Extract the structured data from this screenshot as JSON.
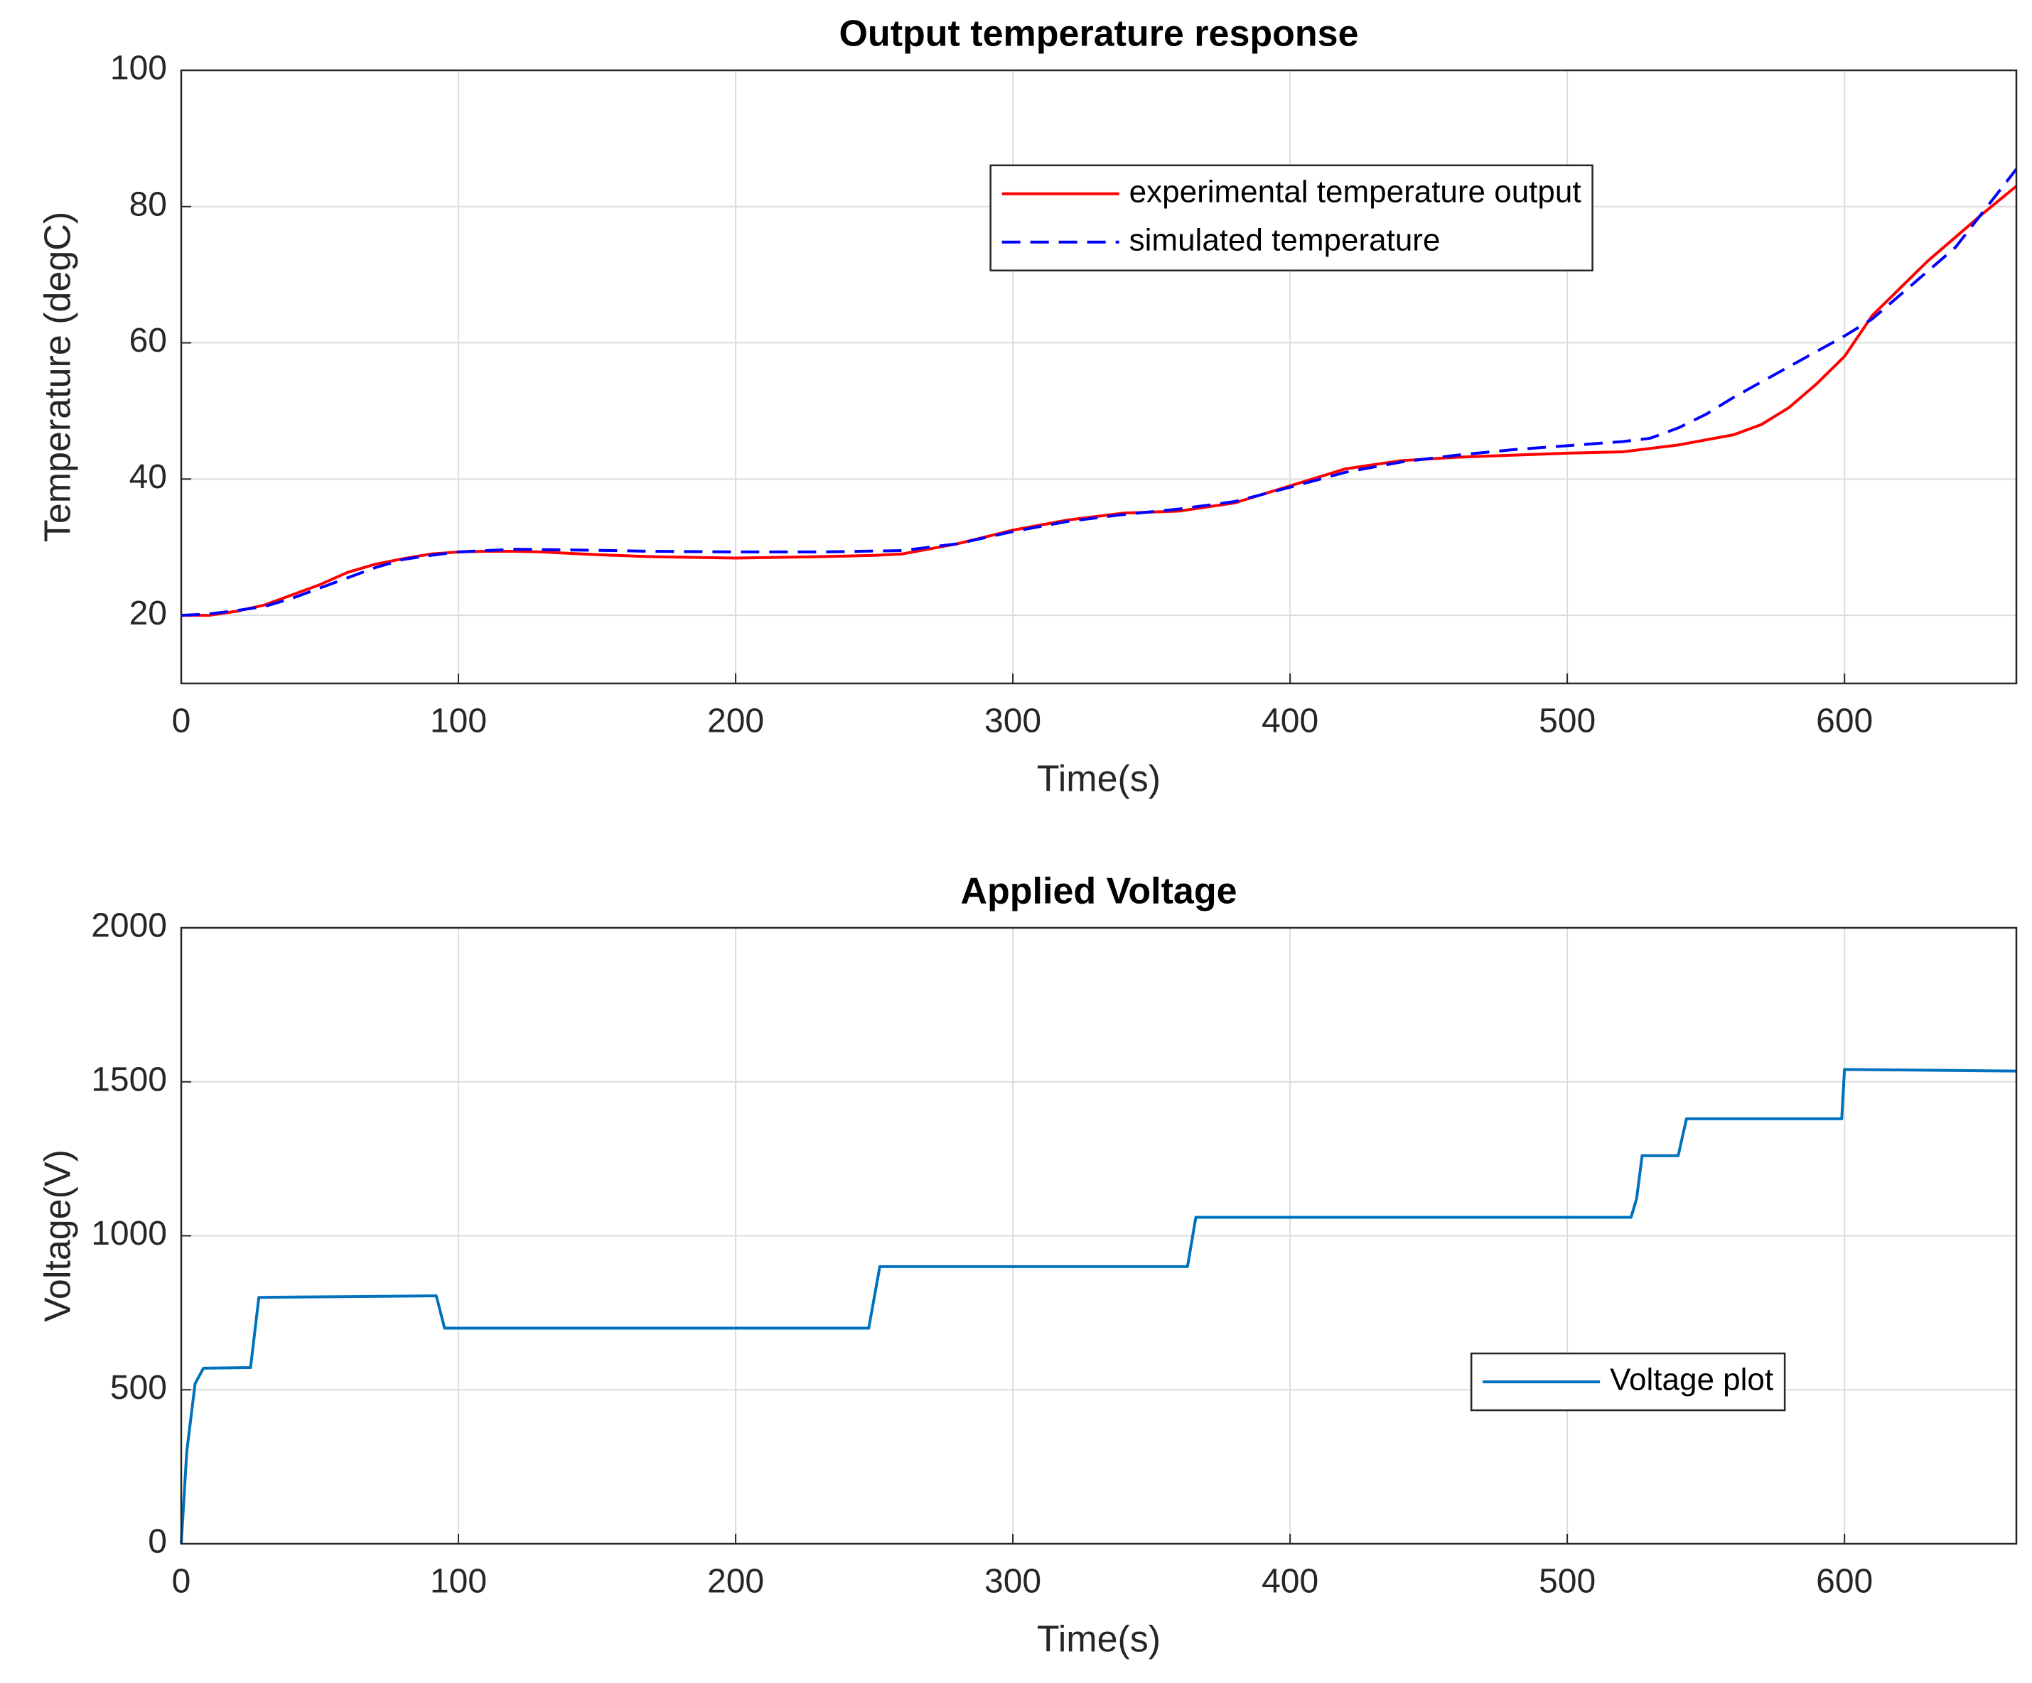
{
  "chart_data": [
    {
      "type": "line",
      "title": "Output temperature response",
      "xlabel": "Time(s)",
      "ylabel": "Temperature (degC)",
      "xlim": [
        0,
        662
      ],
      "ylim": [
        10,
        100
      ],
      "xticks": [
        0,
        100,
        200,
        300,
        400,
        500,
        600
      ],
      "yticks": [
        20,
        40,
        60,
        80,
        100
      ],
      "grid": true,
      "legend_loc": "upper right",
      "series": [
        {
          "name": "experimental temperature output",
          "color": "#ff0000",
          "linestyle": "solid",
          "x": [
            0,
            10,
            20,
            30,
            40,
            50,
            60,
            70,
            80,
            90,
            100,
            110,
            120,
            130,
            140,
            150,
            170,
            200,
            230,
            250,
            260,
            280,
            300,
            320,
            340,
            360,
            380,
            400,
            420,
            440,
            460,
            480,
            500,
            520,
            540,
            560,
            570,
            580,
            590,
            600,
            610,
            620,
            630,
            640,
            650,
            662
          ],
          "values": [
            20,
            20,
            20.6,
            21.5,
            23,
            24.5,
            26.3,
            27.5,
            28.3,
            29,
            29.3,
            29.4,
            29.4,
            29.3,
            29.1,
            28.9,
            28.6,
            28.4,
            28.6,
            28.8,
            29,
            30.5,
            32.5,
            34,
            35,
            35.3,
            36.5,
            39,
            41.5,
            42.7,
            43.2,
            43.5,
            43.8,
            44,
            45,
            46.5,
            48,
            50.5,
            54,
            58,
            64,
            68,
            72,
            75.5,
            79,
            83
          ]
        },
        {
          "name": "simulated temperature",
          "color": "#0000ff",
          "linestyle": "dashed",
          "x": [
            0,
            10,
            20,
            30,
            40,
            50,
            60,
            70,
            80,
            90,
            100,
            120,
            140,
            170,
            200,
            230,
            260,
            280,
            300,
            320,
            340,
            360,
            380,
            400,
            420,
            440,
            460,
            480,
            500,
            520,
            530,
            540,
            550,
            560,
            580,
            600,
            610,
            620,
            640,
            662
          ],
          "values": [
            20,
            20.2,
            20.7,
            21.3,
            22.5,
            24,
            25.5,
            27,
            28.2,
            28.8,
            29.3,
            29.7,
            29.6,
            29.4,
            29.3,
            29.3,
            29.5,
            30.5,
            32.3,
            33.8,
            34.8,
            35.6,
            36.7,
            38.8,
            41,
            42.5,
            43.5,
            44.3,
            44.9,
            45.5,
            46,
            47.5,
            49.5,
            52,
            56.5,
            61,
            63.5,
            67,
            74,
            85.5
          ]
        }
      ]
    },
    {
      "type": "line",
      "title": "Applied Voltage",
      "xlabel": "Time(s)",
      "ylabel": "Voltage(V)",
      "xlim": [
        0,
        662
      ],
      "ylim": [
        0,
        2000
      ],
      "xticks": [
        0,
        100,
        200,
        300,
        400,
        500,
        600
      ],
      "yticks": [
        0,
        500,
        1000,
        1500,
        2000
      ],
      "grid": true,
      "legend_loc": "lower right",
      "series": [
        {
          "name": "Voltage plot",
          "color": "#0072bd",
          "linestyle": "solid",
          "x": [
            0,
            2,
            5,
            8,
            25,
            28,
            92,
            95,
            248,
            252,
            363,
            366,
            523,
            525,
            527,
            540,
            543,
            599,
            600,
            662
          ],
          "values": [
            0,
            300,
            520,
            570,
            572,
            800,
            805,
            700,
            700,
            900,
            900,
            1060,
            1060,
            1120,
            1260,
            1260,
            1380,
            1380,
            1540,
            1535
          ]
        }
      ]
    }
  ]
}
